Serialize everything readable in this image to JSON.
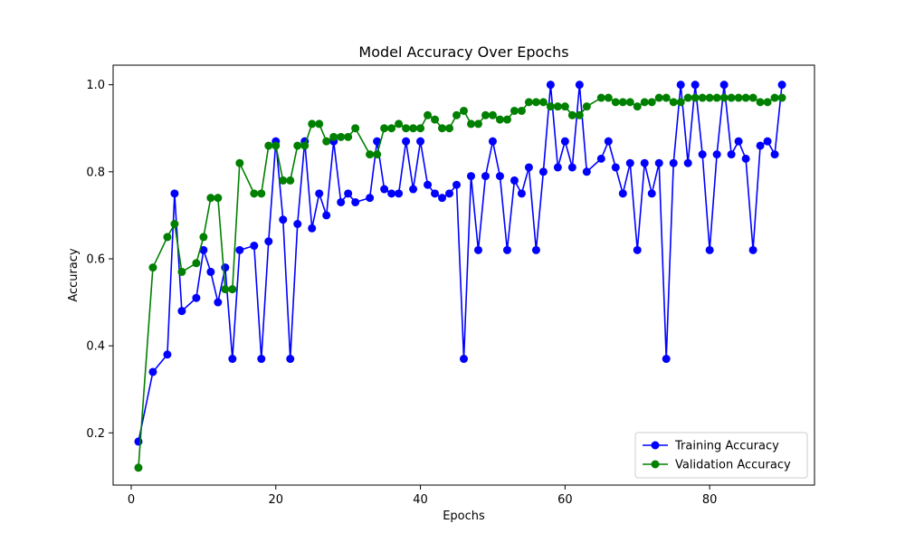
{
  "chart_data": {
    "type": "line",
    "title": "Model Accuracy Over Epochs",
    "xlabel": "Epochs",
    "ylabel": "Accuracy",
    "xlim": [
      -2.5,
      94.5
    ],
    "ylim": [
      0.08,
      1.045
    ],
    "xticks": [
      0,
      20,
      40,
      60,
      80
    ],
    "yticks": [
      0.2,
      0.4,
      0.6,
      0.8,
      1.0
    ],
    "xtick_labels": [
      "0",
      "20",
      "40",
      "60",
      "80"
    ],
    "ytick_labels": [
      "0.2",
      "0.4",
      "0.6",
      "0.8",
      "1.0"
    ],
    "grid": false,
    "legend_position": "bottom-right",
    "x": [
      1,
      3,
      5,
      6,
      7,
      9,
      10,
      11,
      12,
      13,
      14,
      15,
      17,
      18,
      19,
      20,
      21,
      22,
      23,
      24,
      25,
      26,
      27,
      28,
      29,
      30,
      31,
      33,
      34,
      35,
      36,
      37,
      38,
      39,
      40,
      41,
      42,
      43,
      44,
      45,
      46,
      47,
      48,
      49,
      50,
      51,
      52,
      53,
      54,
      55,
      56,
      57,
      58,
      59,
      60,
      61,
      62,
      63,
      65,
      66,
      67,
      68,
      69,
      70,
      71,
      72,
      73,
      74,
      75,
      76,
      77,
      78,
      79,
      80,
      81,
      82,
      83,
      84,
      85,
      86,
      87,
      88,
      89,
      90
    ],
    "series": [
      {
        "name": "Training Accuracy",
        "color": "#0000ff",
        "values": [
          0.18,
          0.34,
          0.38,
          0.75,
          0.48,
          0.51,
          0.62,
          0.57,
          0.5,
          0.58,
          0.37,
          0.62,
          0.63,
          0.37,
          0.64,
          0.87,
          0.69,
          0.37,
          0.68,
          0.87,
          0.67,
          0.75,
          0.7,
          0.87,
          0.73,
          0.75,
          0.73,
          0.74,
          0.87,
          0.76,
          0.75,
          0.75,
          0.87,
          0.76,
          0.87,
          0.77,
          0.75,
          0.74,
          0.75,
          0.77,
          0.37,
          0.79,
          0.62,
          0.79,
          0.87,
          0.79,
          0.62,
          0.78,
          0.75,
          0.81,
          0.62,
          0.8,
          1.0,
          0.81,
          0.87,
          0.81,
          1.0,
          0.8,
          0.83,
          0.87,
          0.81,
          0.75,
          0.82,
          0.62,
          0.82,
          0.75,
          0.82,
          0.37,
          0.82,
          1.0,
          0.82,
          1.0,
          0.84,
          0.62,
          0.84,
          1.0,
          0.84,
          0.87,
          0.83,
          0.62,
          0.86,
          0.87,
          0.84,
          1.0
        ]
      },
      {
        "name": "Validation Accuracy",
        "color": "#008000",
        "values": [
          0.12,
          0.58,
          0.65,
          0.68,
          0.57,
          0.59,
          0.65,
          0.74,
          0.74,
          0.53,
          0.53,
          0.82,
          0.75,
          0.75,
          0.86,
          0.86,
          0.78,
          0.78,
          0.86,
          0.86,
          0.91,
          0.91,
          0.87,
          0.88,
          0.88,
          0.88,
          0.9,
          0.84,
          0.84,
          0.9,
          0.9,
          0.91,
          0.9,
          0.9,
          0.9,
          0.93,
          0.92,
          0.9,
          0.9,
          0.93,
          0.94,
          0.91,
          0.91,
          0.93,
          0.93,
          0.92,
          0.92,
          0.94,
          0.94,
          0.96,
          0.96,
          0.96,
          0.95,
          0.95,
          0.95,
          0.93,
          0.93,
          0.95,
          0.97,
          0.97,
          0.96,
          0.96,
          0.96,
          0.95,
          0.96,
          0.96,
          0.97,
          0.97,
          0.96,
          0.96,
          0.97,
          0.97,
          0.97,
          0.97,
          0.97,
          0.97,
          0.97,
          0.97,
          0.97,
          0.97,
          0.96,
          0.96,
          0.97,
          0.97
        ]
      }
    ]
  }
}
